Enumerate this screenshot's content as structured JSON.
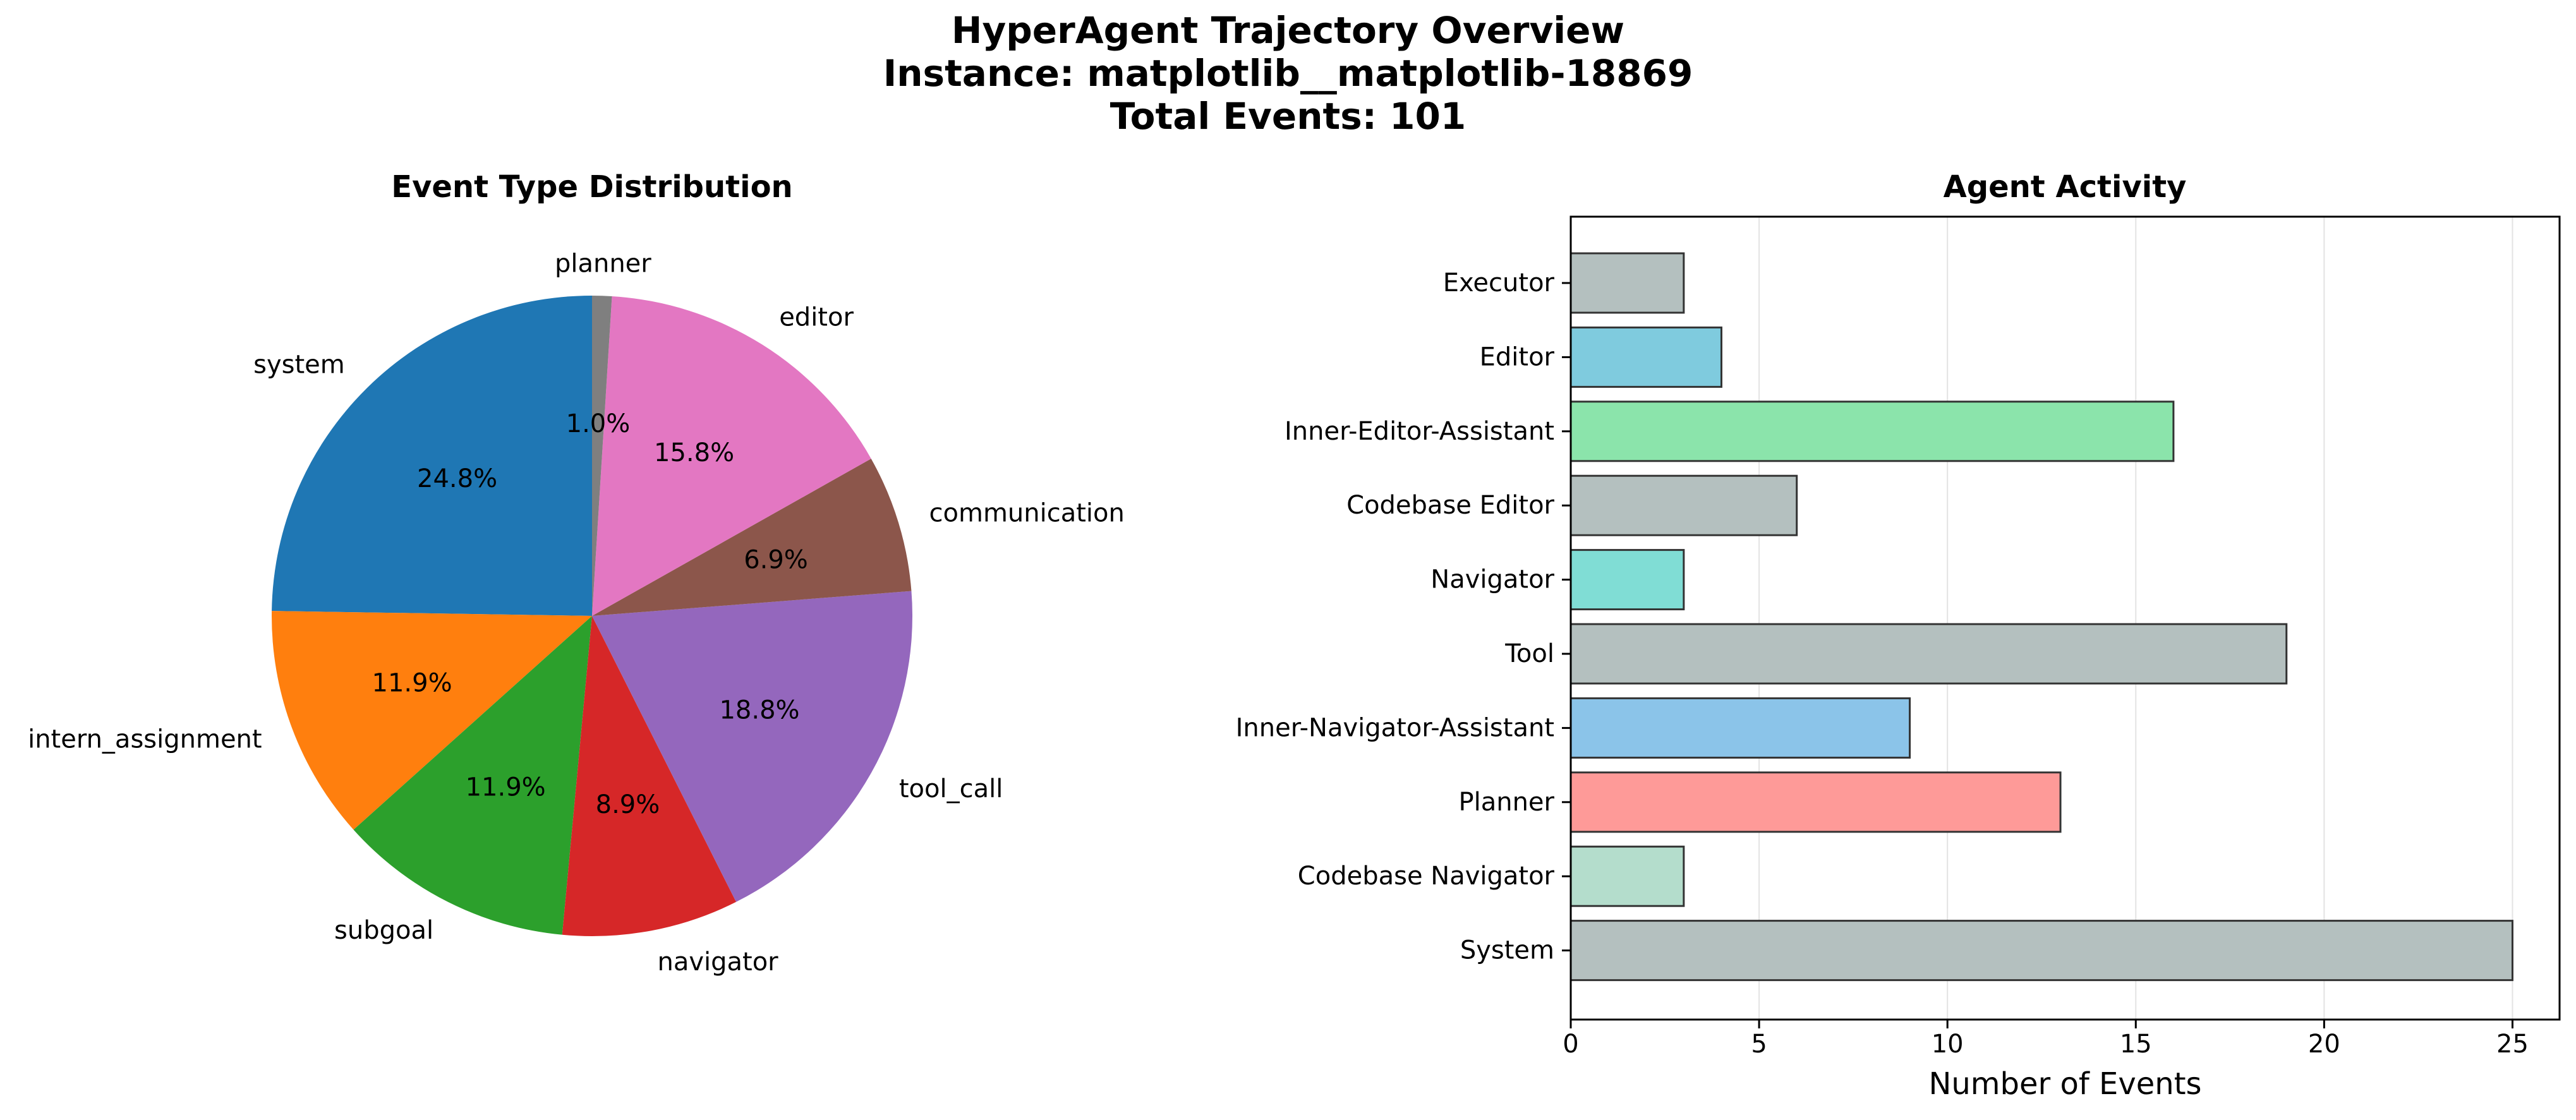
{
  "figure": {
    "title_lines": [
      "HyperAgent Trajectory Overview",
      "Instance: matplotlib__matplotlib-18869",
      "Total Events: 101"
    ]
  },
  "chart_data": [
    {
      "type": "pie",
      "title": "Event Type Distribution",
      "start_angle_deg": 90,
      "direction": "counterclockwise",
      "slices": [
        {
          "label": "system",
          "value": 25,
          "pct_label": "24.8%",
          "color": "#1f77b4"
        },
        {
          "label": "intern_assignment",
          "value": 12,
          "pct_label": "11.9%",
          "color": "#ff7f0e"
        },
        {
          "label": "subgoal",
          "value": 12,
          "pct_label": "11.9%",
          "color": "#2ca02c"
        },
        {
          "label": "navigator",
          "value": 9,
          "pct_label": "8.9%",
          "color": "#d62728"
        },
        {
          "label": "tool_call",
          "value": 19,
          "pct_label": "18.8%",
          "color": "#9467bd"
        },
        {
          "label": "communication",
          "value": 7,
          "pct_label": "6.9%",
          "color": "#8c564b"
        },
        {
          "label": "editor",
          "value": 16,
          "pct_label": "15.8%",
          "color": "#e377c2"
        },
        {
          "label": "planner",
          "value": 1,
          "pct_label": "1.0%",
          "color": "#7f7f7f"
        }
      ]
    },
    {
      "type": "bar",
      "orientation": "horizontal",
      "title": "Agent Activity",
      "xlabel": "Number of Events",
      "ylabel": "",
      "xlim": [
        0,
        26.25
      ],
      "xticks": [
        0,
        5,
        10,
        15,
        20,
        25
      ],
      "grid": "x",
      "categories": [
        "System",
        "Codebase Navigator",
        "Planner",
        "Inner-Navigator-Assistant",
        "Tool",
        "Navigator",
        "Codebase Editor",
        "Inner-Editor-Assistant",
        "Editor",
        "Executor"
      ],
      "values": [
        25,
        3,
        13,
        9,
        19,
        3,
        6,
        16,
        4,
        3
      ],
      "colors": [
        "#b4c0bf",
        "#b4ddcc",
        "#fe9a98",
        "#8bc4e9",
        "#b4c0bf",
        "#80ddd5",
        "#b4c0bf",
        "#8be4ab",
        "#7fcbde",
        "#b4c0bf"
      ]
    }
  ]
}
